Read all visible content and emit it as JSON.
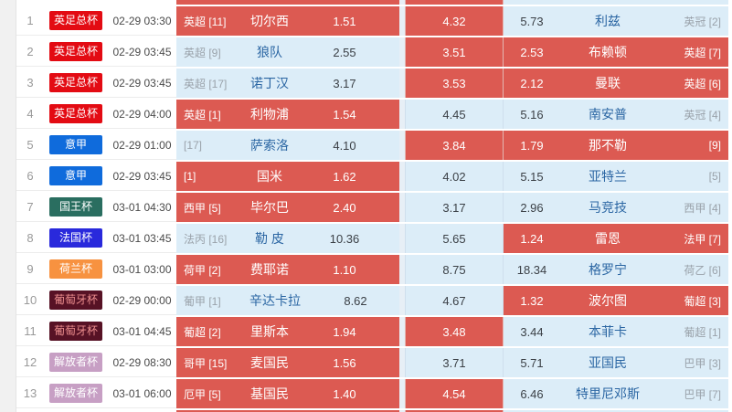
{
  "table": {
    "description": "football-match-odds-list",
    "colors": {
      "hot_cell_bg": "#dc5a52",
      "cool_cell_bg": "#dcedf8",
      "gap_bg": "#e7eff6",
      "left_strip_bg": "#f1f1f1",
      "link_blue": "#2b66a3",
      "muted_gray": "#9aa2aa"
    },
    "partial_row_top": {
      "home_hot": true,
      "draw_hot": true,
      "away_hot": false
    },
    "partial_row_bottom": {
      "home_hot": true,
      "draw_hot": true,
      "away_hot": false
    },
    "rows": [
      {
        "num": "1",
        "league": {
          "label": "英足总杯",
          "bg": "#e30b13",
          "fg": "#ffffff"
        },
        "time": "02-29 03:30",
        "home": {
          "rank": "英超 [11]",
          "name": "切尔西",
          "odds": "1.51",
          "hot": true
        },
        "draw": {
          "odds": "4.32",
          "hot": true
        },
        "away": {
          "odds": "5.73",
          "name": "利兹",
          "rank": "英冠 [2]",
          "hot": false
        }
      },
      {
        "num": "2",
        "league": {
          "label": "英足总杯",
          "bg": "#e30b13",
          "fg": "#ffffff"
        },
        "time": "02-29 03:45",
        "home": {
          "rank": "英超 [9]",
          "name": "狼队",
          "odds": "2.55",
          "hot": false
        },
        "draw": {
          "odds": "3.51",
          "hot": true
        },
        "away": {
          "odds": "2.53",
          "name": "布赖顿",
          "rank": "英超 [7]",
          "hot": true
        }
      },
      {
        "num": "3",
        "league": {
          "label": "英足总杯",
          "bg": "#e30b13",
          "fg": "#ffffff"
        },
        "time": "02-29 03:45",
        "home": {
          "rank": "英超 [17]",
          "name": "诺丁汉",
          "odds": "3.17",
          "hot": false
        },
        "draw": {
          "odds": "3.53",
          "hot": true
        },
        "away": {
          "odds": "2.12",
          "name": "曼联",
          "rank": "英超 [6]",
          "hot": true
        }
      },
      {
        "num": "4",
        "league": {
          "label": "英足总杯",
          "bg": "#e30b13",
          "fg": "#ffffff"
        },
        "time": "02-29 04:00",
        "home": {
          "rank": "英超 [1]",
          "name": "利物浦",
          "odds": "1.54",
          "hot": true
        },
        "draw": {
          "odds": "4.45",
          "hot": false
        },
        "away": {
          "odds": "5.16",
          "name": "南安普",
          "rank": "英冠 [4]",
          "hot": false
        }
      },
      {
        "num": "5",
        "league": {
          "label": "意甲",
          "bg": "#0f6bdc",
          "fg": "#ffffff"
        },
        "time": "02-29 01:00",
        "home": {
          "rank": "[17]",
          "name": "萨索洛",
          "odds": "4.10",
          "hot": false
        },
        "draw": {
          "odds": "3.84",
          "hot": true
        },
        "away": {
          "odds": "1.79",
          "name": "那不勒",
          "rank": "[9]",
          "hot": true
        }
      },
      {
        "num": "6",
        "league": {
          "label": "意甲",
          "bg": "#0f6bdc",
          "fg": "#ffffff"
        },
        "time": "02-29 03:45",
        "home": {
          "rank": "[1]",
          "name": "国米",
          "odds": "1.62",
          "hot": true
        },
        "draw": {
          "odds": "4.02",
          "hot": false
        },
        "away": {
          "odds": "5.15",
          "name": "亚特兰",
          "rank": "[5]",
          "hot": false
        }
      },
      {
        "num": "7",
        "league": {
          "label": "国王杯",
          "bg": "#2a6e60",
          "fg": "#ffffff"
        },
        "time": "03-01 04:30",
        "home": {
          "rank": "西甲 [5]",
          "name": "毕尔巴",
          "odds": "2.40",
          "hot": true
        },
        "draw": {
          "odds": "3.17",
          "hot": false
        },
        "away": {
          "odds": "2.96",
          "name": "马竞技",
          "rank": "西甲 [4]",
          "hot": false
        }
      },
      {
        "num": "8",
        "league": {
          "label": "法国杯",
          "bg": "#2929dc",
          "fg": "#ffffff"
        },
        "time": "03-01 03:45",
        "home": {
          "rank": "法丙 [16]",
          "name": "勒 皮",
          "odds": "10.36",
          "hot": false
        },
        "draw": {
          "odds": "5.65",
          "hot": false
        },
        "away": {
          "odds": "1.24",
          "name": "雷恩",
          "rank": "法甲 [7]",
          "hot": true
        }
      },
      {
        "num": "9",
        "league": {
          "label": "荷兰杯",
          "bg": "#f79240",
          "fg": "#ffffff"
        },
        "time": "03-01 03:00",
        "home": {
          "rank": "荷甲 [2]",
          "name": "费耶诺",
          "odds": "1.10",
          "hot": true
        },
        "draw": {
          "odds": "8.75",
          "hot": false
        },
        "away": {
          "odds": "18.34",
          "name": "格罗宁",
          "rank": "荷乙 [6]",
          "hot": false
        }
      },
      {
        "num": "10",
        "league": {
          "label": "葡萄牙杯",
          "bg": "#571225",
          "fg": "#ee8f8f"
        },
        "time": "02-29 00:00",
        "home": {
          "rank": "葡甲 [1]",
          "name": "辛达卡拉",
          "odds": "8.62",
          "hot": false
        },
        "draw": {
          "odds": "4.67",
          "hot": false
        },
        "away": {
          "odds": "1.32",
          "name": "波尔图",
          "rank": "葡超 [3]",
          "hot": true
        }
      },
      {
        "num": "11",
        "league": {
          "label": "葡萄牙杯",
          "bg": "#571225",
          "fg": "#ee8f8f"
        },
        "time": "03-01 04:45",
        "home": {
          "rank": "葡超 [2]",
          "name": "里斯本",
          "odds": "1.94",
          "hot": true
        },
        "draw": {
          "odds": "3.48",
          "hot": true
        },
        "away": {
          "odds": "3.44",
          "name": "本菲卡",
          "rank": "葡超 [1]",
          "hot": false
        }
      },
      {
        "num": "12",
        "league": {
          "label": "解放者杯",
          "bg": "#c79fc4",
          "fg": "#ffffff"
        },
        "time": "02-29 08:30",
        "home": {
          "rank": "哥甲 [15]",
          "name": "麦国民",
          "odds": "1.56",
          "hot": true
        },
        "draw": {
          "odds": "3.71",
          "hot": false
        },
        "away": {
          "odds": "5.71",
          "name": "亚国民",
          "rank": "巴甲 [3]",
          "hot": false
        }
      },
      {
        "num": "13",
        "league": {
          "label": "解放者杯",
          "bg": "#c79fc4",
          "fg": "#ffffff"
        },
        "time": "03-01 06:00",
        "home": {
          "rank": "厄甲 [5]",
          "name": "基国民",
          "odds": "1.40",
          "hot": true
        },
        "draw": {
          "odds": "4.54",
          "hot": true
        },
        "away": {
          "odds": "6.46",
          "name": "特里尼邓斯",
          "rank": "巴甲 [7]",
          "hot": false
        }
      }
    ]
  }
}
